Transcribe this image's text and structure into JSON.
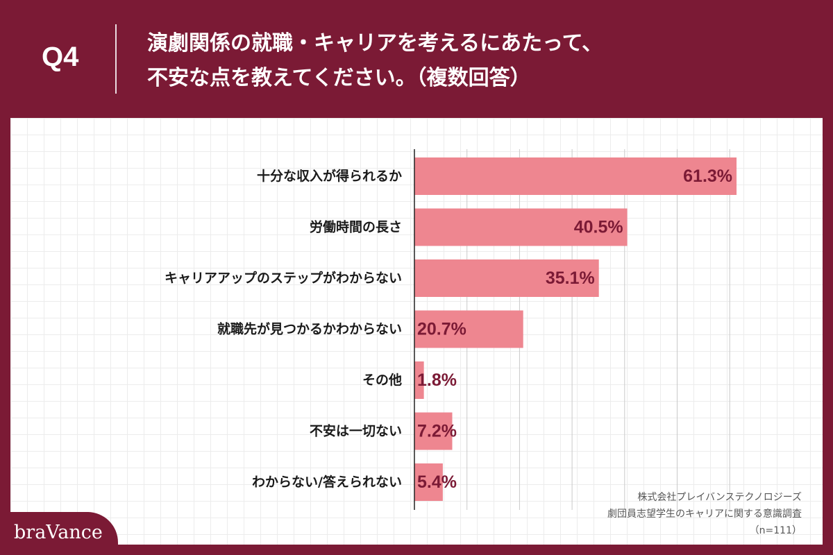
{
  "header": {
    "question_label": "Q4",
    "title_line1": "演劇関係の就職・キャリアを考えるにあたって、",
    "title_line2": "不安な点を教えてください。（複数回答）"
  },
  "source": {
    "company": "株式会社プレイバンステクノロジーズ",
    "survey": "劇団員志望学生のキャリアに関する意識調査",
    "sample": "（n=111）"
  },
  "brand": {
    "name": "braVance"
  },
  "colors": {
    "background": "#7b1a35",
    "bar": "#ee8690",
    "value_label": "#7b1a35",
    "panel": "#ffffff"
  },
  "chart_data": {
    "type": "bar",
    "orientation": "horizontal",
    "categories": [
      "十分な収入が得られるか",
      "労働時間の長さ",
      "キャリアアップのステップがわからない",
      "就職先が見つかるかわからない",
      "その他",
      "不安は一切ない",
      "わからない/答えられない"
    ],
    "values": [
      61.3,
      40.5,
      35.1,
      20.7,
      1.8,
      7.2,
      5.4
    ],
    "value_labels": [
      "61.3%",
      "40.5%",
      "35.1%",
      "20.7%",
      "1.8%",
      "7.2%",
      "5.4%"
    ],
    "xlim": [
      0,
      70
    ],
    "grid": true
  }
}
